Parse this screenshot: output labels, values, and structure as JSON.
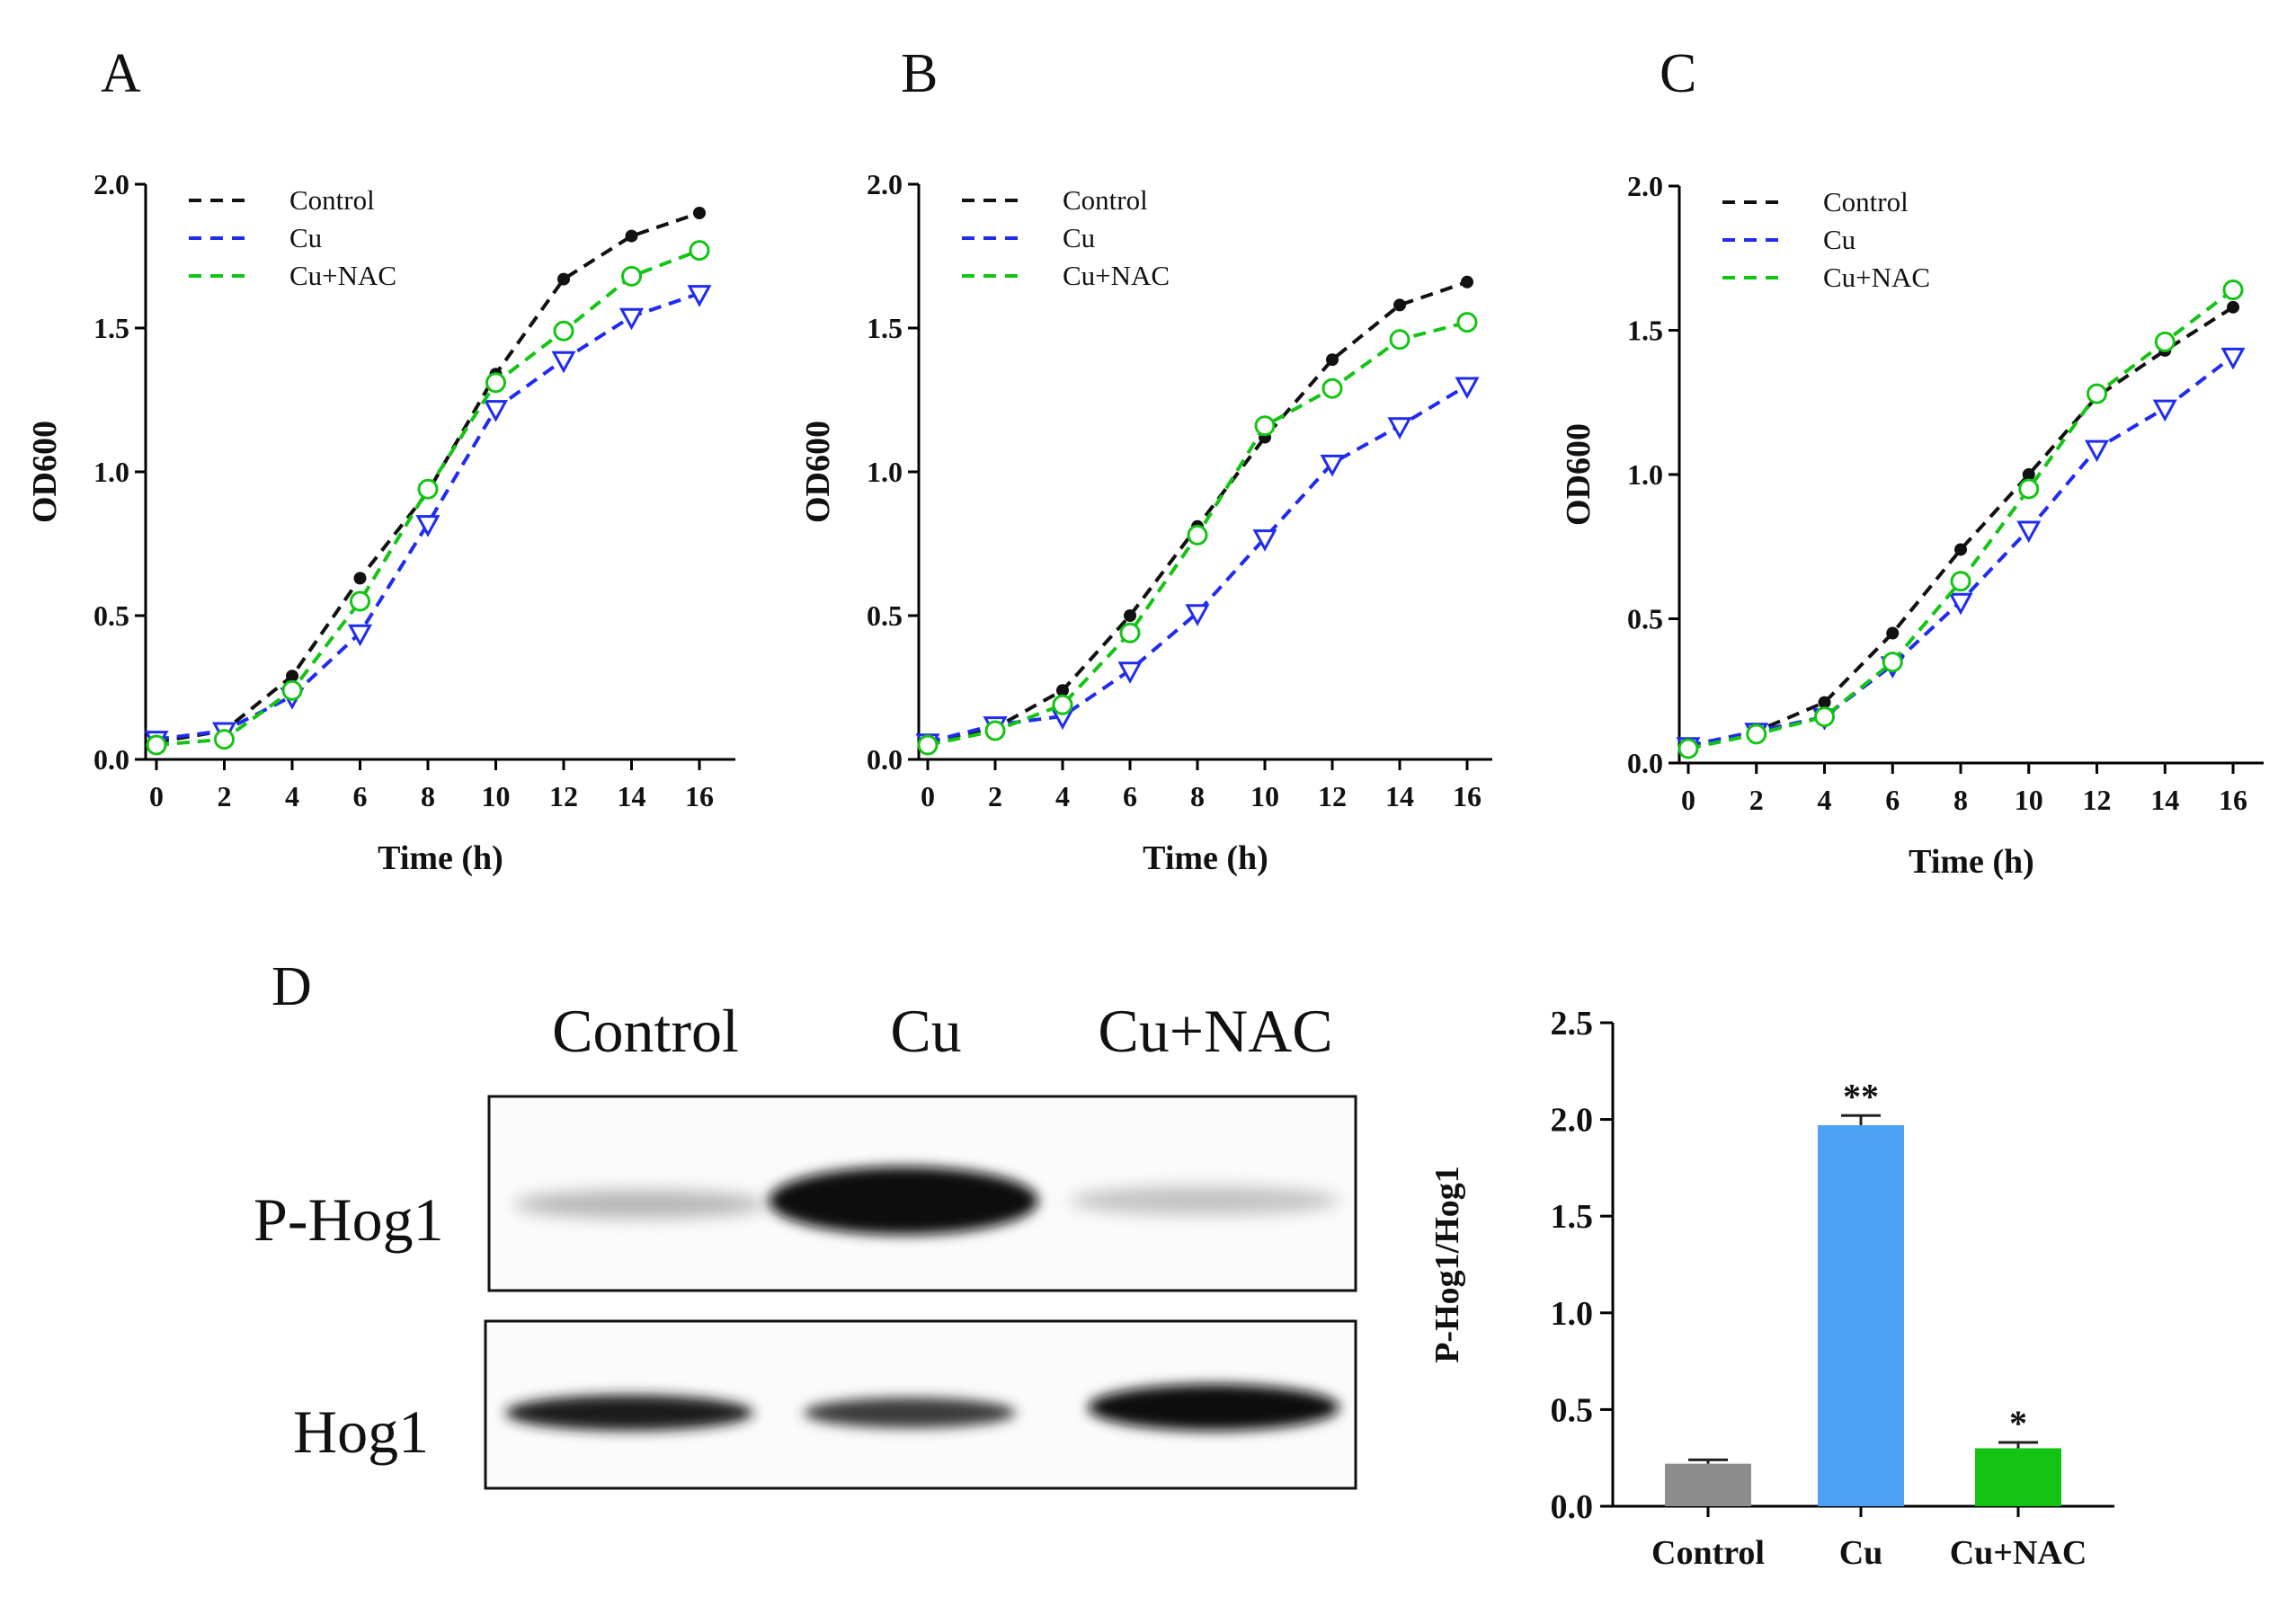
{
  "panels": {
    "A": "A",
    "B": "B",
    "C": "C",
    "D": "D"
  },
  "colors": {
    "control": "#111111",
    "cu": "#1f2cf0",
    "cu_nac": "#14c414",
    "bar_control": "#8c8c8c",
    "bar_cu": "#4ea0f5",
    "bar_cu_nac": "#14c414"
  },
  "blot": {
    "lanes": [
      "Control",
      "Cu",
      "Cu+NAC"
    ],
    "rows": [
      "P-Hog1",
      "Hog1"
    ]
  },
  "chart_data": [
    {
      "id": "A",
      "type": "line",
      "xlabel": "Time (h)",
      "ylabel": "OD600",
      "x": [
        0,
        2,
        4,
        6,
        8,
        10,
        12,
        14,
        16
      ],
      "xticks": [
        "0",
        "2",
        "4",
        "6",
        "8",
        "10",
        "12",
        "14",
        "16"
      ],
      "yticks": [
        "0.0",
        "0.5",
        "1.0",
        "1.5",
        "2.0"
      ],
      "ylim": [
        0,
        2.0
      ],
      "legend_position": "top-left",
      "series": [
        {
          "name": "Control",
          "marker": "filled-circle",
          "values": [
            0.06,
            0.1,
            0.29,
            0.63,
            0.93,
            1.34,
            1.67,
            1.82,
            1.9
          ]
        },
        {
          "name": "Cu",
          "marker": "open-triangle-down",
          "values": [
            0.07,
            0.1,
            0.22,
            0.44,
            0.82,
            1.22,
            1.39,
            1.54,
            1.62
          ]
        },
        {
          "name": "Cu+NAC",
          "marker": "open-circle",
          "values": [
            0.05,
            0.07,
            0.24,
            0.55,
            0.94,
            1.31,
            1.49,
            1.68,
            1.77
          ]
        }
      ]
    },
    {
      "id": "B",
      "type": "line",
      "xlabel": "Time (h)",
      "ylabel": "OD600",
      "x": [
        0,
        2,
        4,
        6,
        8,
        10,
        12,
        14,
        16
      ],
      "xticks": [
        "0",
        "2",
        "4",
        "6",
        "8",
        "10",
        "12",
        "14",
        "16"
      ],
      "yticks": [
        "0.0",
        "0.5",
        "1.0",
        "1.5",
        "2.0"
      ],
      "ylim": [
        0,
        2.0
      ],
      "legend_position": "top-left",
      "series": [
        {
          "name": "Control",
          "marker": "filled-circle",
          "values": [
            0.06,
            0.11,
            0.24,
            0.5,
            0.81,
            1.12,
            1.39,
            1.58,
            1.66
          ]
        },
        {
          "name": "Cu",
          "marker": "open-triangle-down",
          "values": [
            0.06,
            0.12,
            0.15,
            0.31,
            0.51,
            0.77,
            1.03,
            1.16,
            1.3
          ]
        },
        {
          "name": "Cu+NAC",
          "marker": "open-circle",
          "values": [
            0.05,
            0.1,
            0.19,
            0.44,
            0.78,
            1.16,
            1.29,
            1.46,
            1.52
          ]
        }
      ]
    },
    {
      "id": "C",
      "type": "line",
      "xlabel": "Time (h)",
      "ylabel": "OD600",
      "x": [
        0,
        2,
        4,
        6,
        8,
        10,
        12,
        14,
        16
      ],
      "xticks": [
        "0",
        "2",
        "4",
        "6",
        "8",
        "10",
        "12",
        "14",
        "16"
      ],
      "yticks": [
        "0.0",
        "0.5",
        "1.0",
        "1.5",
        "2.0"
      ],
      "ylim": [
        0,
        2.0
      ],
      "legend_position": "top-left",
      "series": [
        {
          "name": "Control",
          "marker": "filled-circle",
          "values": [
            0.06,
            0.11,
            0.21,
            0.45,
            0.74,
            1.0,
            1.27,
            1.43,
            1.58
          ]
        },
        {
          "name": "Cu",
          "marker": "open-triangle-down",
          "values": [
            0.06,
            0.11,
            0.16,
            0.34,
            0.56,
            0.81,
            1.09,
            1.23,
            1.41
          ]
        },
        {
          "name": "Cu+NAC",
          "marker": "open-circle",
          "values": [
            0.05,
            0.1,
            0.16,
            0.35,
            0.63,
            0.95,
            1.28,
            1.46,
            1.64
          ]
        }
      ]
    },
    {
      "id": "D",
      "type": "bar",
      "ylabel": "P-Hog1/Hog1",
      "categories": [
        "Control",
        "Cu",
        "Cu+NAC"
      ],
      "values": [
        0.22,
        1.97,
        0.3
      ],
      "errors": [
        0.02,
        0.05,
        0.03
      ],
      "significance": [
        "",
        "**",
        "*"
      ],
      "yticks": [
        "0.0",
        "0.5",
        "1.0",
        "1.5",
        "2.0",
        "2.5"
      ],
      "ylim": [
        0,
        2.5
      ]
    }
  ]
}
